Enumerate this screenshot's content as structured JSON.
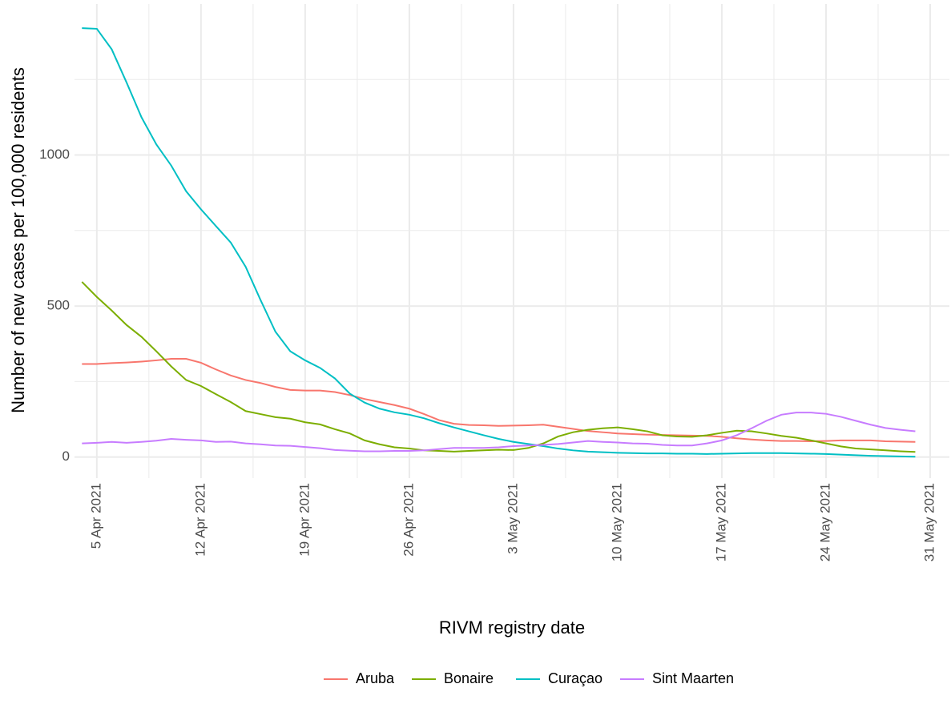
{
  "chart_data": {
    "type": "line",
    "x_label": "RIVM registry date",
    "y_label": "Number of new cases per 100,000 residents",
    "x": [
      "2021-04-04",
      "2021-04-05",
      "2021-04-06",
      "2021-04-07",
      "2021-04-08",
      "2021-04-09",
      "2021-04-10",
      "2021-04-11",
      "2021-04-12",
      "2021-04-13",
      "2021-04-14",
      "2021-04-15",
      "2021-04-16",
      "2021-04-17",
      "2021-04-18",
      "2021-04-19",
      "2021-04-20",
      "2021-04-21",
      "2021-04-22",
      "2021-04-23",
      "2021-04-24",
      "2021-04-25",
      "2021-04-26",
      "2021-04-27",
      "2021-04-28",
      "2021-04-29",
      "2021-04-30",
      "2021-05-01",
      "2021-05-02",
      "2021-05-03",
      "2021-05-04",
      "2021-05-05",
      "2021-05-06",
      "2021-05-07",
      "2021-05-08",
      "2021-05-09",
      "2021-05-10",
      "2021-05-11",
      "2021-05-12",
      "2021-05-13",
      "2021-05-14",
      "2021-05-15",
      "2021-05-16",
      "2021-05-17",
      "2021-05-18",
      "2021-05-19",
      "2021-05-20",
      "2021-05-21",
      "2021-05-22",
      "2021-05-23",
      "2021-05-24",
      "2021-05-25",
      "2021-05-26",
      "2021-05-27",
      "2021-05-28",
      "2021-05-29",
      "2021-05-30"
    ],
    "series": [
      {
        "name": "Aruba",
        "color": "#f8766d",
        "values": [
          308,
          308,
          311,
          313,
          316,
          320,
          325,
          325,
          312,
          290,
          270,
          255,
          245,
          232,
          222,
          220,
          220,
          215,
          205,
          192,
          182,
          172,
          160,
          142,
          122,
          110,
          106,
          105,
          103,
          104,
          105,
          107,
          100,
          93,
          86,
          82,
          78,
          76,
          74,
          73,
          72,
          71,
          70,
          67,
          62,
          58,
          55,
          53,
          53,
          52,
          53,
          55,
          55,
          55,
          52,
          51,
          50
        ]
      },
      {
        "name": "Bonaire",
        "color": "#7cae00",
        "values": [
          580,
          530,
          485,
          437,
          398,
          350,
          300,
          255,
          235,
          208,
          182,
          152,
          142,
          132,
          127,
          115,
          108,
          92,
          78,
          55,
          42,
          32,
          28,
          22,
          20,
          18,
          20,
          22,
          24,
          23,
          30,
          45,
          68,
          82,
          90,
          95,
          98,
          92,
          85,
          72,
          68,
          67,
          72,
          80,
          87,
          85,
          78,
          70,
          64,
          55,
          45,
          35,
          28,
          25,
          22,
          19,
          17
        ]
      },
      {
        "name": "Curaçao",
        "color": "#00bfc4",
        "values": [
          1420,
          1418,
          1350,
          1240,
          1125,
          1035,
          965,
          880,
          820,
          765,
          710,
          630,
          520,
          415,
          350,
          320,
          295,
          260,
          210,
          180,
          160,
          148,
          140,
          128,
          112,
          98,
          85,
          72,
          60,
          50,
          43,
          36,
          28,
          22,
          18,
          16,
          14,
          13,
          12,
          12,
          11,
          11,
          10,
          11,
          12,
          13,
          13,
          13,
          12,
          11,
          10,
          8,
          6,
          4,
          3,
          2,
          1
        ]
      },
      {
        "name": "Sint Maarten",
        "color": "#c77cff",
        "values": [
          45,
          47,
          50,
          47,
          50,
          54,
          60,
          57,
          55,
          50,
          51,
          45,
          42,
          38,
          37,
          33,
          29,
          23,
          21,
          19,
          19,
          20,
          20,
          22,
          26,
          30,
          30,
          30,
          32,
          36,
          38,
          40,
          43,
          48,
          53,
          50,
          48,
          45,
          44,
          40,
          38,
          38,
          45,
          55,
          72,
          95,
          120,
          140,
          147,
          147,
          143,
          133,
          120,
          107,
          96,
          90,
          85
        ]
      }
    ],
    "xlim": [
      "2021-04-03T12:00",
      "2021-06-01T07:00"
    ],
    "xticks": [
      {
        "value": "2021-04-05",
        "label": "5 Apr 2021"
      },
      {
        "value": "2021-04-12",
        "label": "12 Apr 2021"
      },
      {
        "value": "2021-04-19",
        "label": "19 Apr 2021"
      },
      {
        "value": "2021-04-26",
        "label": "26 Apr 2021"
      },
      {
        "value": "2021-05-03",
        "label": "3 May 2021"
      },
      {
        "value": "2021-05-10",
        "label": "10 May 2021"
      },
      {
        "value": "2021-05-17",
        "label": "17 May 2021"
      },
      {
        "value": "2021-05-24",
        "label": "24 May 2021"
      },
      {
        "value": "2021-05-31",
        "label": "31 May 2021"
      }
    ],
    "x_minor_ticks": [
      "2021-04-08T12:00",
      "2021-04-15T12:00",
      "2021-04-22T12:00",
      "2021-04-29T12:00",
      "2021-05-06T12:00",
      "2021-05-13T12:00",
      "2021-05-20T12:00",
      "2021-05-27T12:00"
    ],
    "ylim": [
      -70,
      1500
    ],
    "yticks": [
      0,
      500,
      1000
    ],
    "y_minor_ticks": [
      250,
      750,
      1250
    ],
    "grid": true,
    "legend": "bottom"
  }
}
